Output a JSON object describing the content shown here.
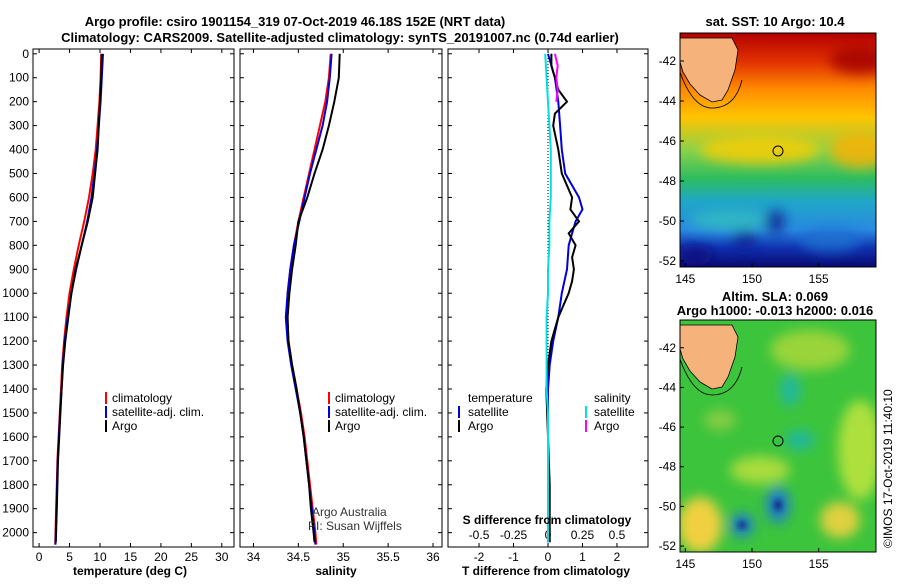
{
  "header": {
    "title_line1": "Argo profile: csiro 1901154_319 07-Oct-2019 46.18S 152E (NRT data)",
    "title_line2": "Climatology: CARS2009. Satellite-adjusted climatology: synTS_20191007.nc (0.74d earlier)"
  },
  "colors": {
    "climatology": "#ff0000",
    "satellite": "#0000dd",
    "argo": "#000000",
    "sat_salinity": "#00e0e0",
    "argo_salinity": "#ff00ff"
  },
  "depth_ticks": [
    "0",
    "100",
    "200",
    "300",
    "400",
    "500",
    "600",
    "700",
    "800",
    "900",
    "1000",
    "1100",
    "1200",
    "1300",
    "1400",
    "1500",
    "1600",
    "1700",
    "1800",
    "1900",
    "2000"
  ],
  "legend_tp": {
    "items": [
      "climatology",
      "satellite-adj. clim.",
      "Argo"
    ]
  },
  "legend_diff": {
    "temperature_header": "temperature",
    "salinity_header": "salinity",
    "t_items": [
      "satellite",
      "Argo"
    ],
    "s_items": [
      "satellite",
      "Argo"
    ]
  },
  "credits": {
    "line1": "Argo Australia",
    "line2": "PI: Susan Wijffels"
  },
  "chart_data": [
    {
      "type": "line",
      "id": "temperature",
      "xlabel": "temperature (deg C)",
      "ylabel": "depth",
      "xlim": [
        -1,
        32
      ],
      "ylim": [
        2060,
        -20
      ],
      "xticks": [
        "0",
        "5",
        "10",
        "15",
        "20",
        "25",
        "30"
      ],
      "series": [
        {
          "name": "climatology",
          "depth": [
            0,
            100,
            200,
            300,
            400,
            500,
            600,
            700,
            800,
            900,
            1000,
            1100,
            1200,
            1300,
            1400,
            1500,
            1600,
            1700,
            1800,
            1900,
            2000,
            2050
          ],
          "values": [
            10.2,
            10.1,
            9.9,
            9.6,
            9.3,
            8.8,
            8.2,
            7.4,
            6.5,
            5.7,
            5.0,
            4.5,
            4.1,
            3.8,
            3.6,
            3.4,
            3.2,
            3.0,
            2.9,
            2.8,
            2.7,
            2.65
          ]
        },
        {
          "name": "satellite-adj. clim.",
          "depth": [
            0,
            100,
            200,
            300,
            400,
            500,
            600,
            700,
            800,
            900,
            1000,
            1100,
            1200,
            1300,
            1400,
            1500,
            1600,
            1700,
            1800,
            1900,
            2000,
            2050
          ],
          "values": [
            10.5,
            10.3,
            10.1,
            9.8,
            9.5,
            9.1,
            8.6,
            7.9,
            7.0,
            6.1,
            5.3,
            4.7,
            4.2,
            3.9,
            3.7,
            3.45,
            3.25,
            3.05,
            2.95,
            2.85,
            2.75,
            2.7
          ]
        },
        {
          "name": "Argo",
          "depth": [
            0,
            100,
            200,
            300,
            400,
            500,
            600,
            700,
            800,
            900,
            1000,
            1100,
            1200,
            1300,
            1400,
            1500,
            1600,
            1700,
            1800,
            1900,
            2000,
            2040
          ],
          "values": [
            10.3,
            10.2,
            10.0,
            9.8,
            9.6,
            9.2,
            8.8,
            8.0,
            7.0,
            6.0,
            5.3,
            4.8,
            4.3,
            3.95,
            3.7,
            3.5,
            3.3,
            3.1,
            3.0,
            2.9,
            2.8,
            2.75
          ]
        }
      ]
    },
    {
      "type": "line",
      "id": "salinity",
      "xlabel": "salinity",
      "ylabel": "depth",
      "xlim": [
        33.85,
        36.1
      ],
      "ylim": [
        2060,
        -20
      ],
      "xticks": [
        "34",
        "34.5",
        "35",
        "35.5",
        "36"
      ],
      "series": [
        {
          "name": "climatology",
          "depth": [
            0,
            100,
            200,
            300,
            400,
            500,
            600,
            700,
            800,
            900,
            1000,
            1100,
            1200,
            1300,
            1400,
            1500,
            1600,
            1700,
            1800,
            1900,
            2000,
            2050
          ],
          "values": [
            34.86,
            34.84,
            34.8,
            34.74,
            34.68,
            34.62,
            34.56,
            34.5,
            34.45,
            34.41,
            34.38,
            34.37,
            34.39,
            34.43,
            34.48,
            34.53,
            34.57,
            34.6,
            34.63,
            34.66,
            34.69,
            34.7
          ]
        },
        {
          "name": "satellite-adj. clim.",
          "depth": [
            0,
            100,
            200,
            300,
            400,
            500,
            600,
            700,
            800,
            900,
            1000,
            1100,
            1200,
            1300,
            1400,
            1500,
            1600,
            1700,
            1800,
            1900,
            2000,
            2050
          ],
          "values": [
            34.87,
            34.85,
            34.82,
            34.77,
            34.7,
            34.63,
            34.57,
            34.51,
            34.45,
            34.41,
            34.38,
            34.36,
            34.38,
            34.42,
            34.47,
            34.52,
            34.56,
            34.59,
            34.62,
            34.65,
            34.68,
            34.69
          ]
        },
        {
          "name": "Argo",
          "depth": [
            0,
            100,
            200,
            300,
            400,
            500,
            600,
            700,
            800,
            900,
            1000,
            1100,
            1200,
            1300,
            1400,
            1500,
            1600,
            1700,
            1800,
            1900,
            2000,
            2040
          ],
          "values": [
            34.96,
            34.95,
            34.9,
            34.84,
            34.77,
            34.68,
            34.6,
            34.5,
            34.47,
            34.43,
            34.4,
            34.38,
            34.39,
            34.43,
            34.48,
            34.52,
            34.56,
            34.59,
            34.62,
            34.64,
            34.67,
            34.68
          ]
        }
      ]
    },
    {
      "type": "line",
      "id": "difference",
      "xlabel": "T difference from climatology",
      "xlabel_top": "S difference from climatology",
      "xlim": [
        -2.9,
        2.9
      ],
      "ylim": [
        2060,
        -20
      ],
      "xticks": [
        "-2",
        "-1",
        "0",
        "1",
        "2"
      ],
      "xticks_top": [
        "-0.5",
        "-0.25",
        "0",
        "0.25",
        "0.5"
      ],
      "series": [
        {
          "name": "temperature satellite",
          "depth": [
            0,
            100,
            200,
            300,
            400,
            500,
            600,
            650,
            700,
            750,
            800,
            900,
            1000,
            1100,
            1200,
            1300,
            1400,
            1500,
            1700,
            1900,
            2040
          ],
          "values": [
            0.0,
            0.2,
            0.3,
            0.35,
            0.4,
            0.5,
            0.9,
            1.0,
            0.8,
            0.7,
            0.6,
            0.55,
            0.4,
            0.3,
            0.15,
            0.05,
            0.0,
            0.0,
            0.0,
            0.0,
            0.0
          ]
        },
        {
          "name": "temperature Argo",
          "depth": [
            0,
            50,
            100,
            150,
            200,
            250,
            300,
            400,
            500,
            600,
            650,
            700,
            750,
            800,
            850,
            900,
            950,
            1000,
            1100,
            1200,
            1300,
            1400,
            1600,
            1800,
            2040
          ],
          "values": [
            0.1,
            0.1,
            0.2,
            0.3,
            0.55,
            0.2,
            0.15,
            0.3,
            0.4,
            0.7,
            0.65,
            0.9,
            0.6,
            0.8,
            0.7,
            0.75,
            0.7,
            0.6,
            0.3,
            0.1,
            0.0,
            -0.05,
            0.0,
            0.05,
            0.05
          ]
        },
        {
          "name": "salinity satellite",
          "depth": [
            0,
            100,
            200,
            300,
            400,
            500,
            600,
            700,
            800,
            900,
            1000,
            1100,
            1200,
            1300,
            1400,
            1500,
            1700,
            1900,
            2040
          ],
          "values": [
            -0.02,
            -0.01,
            0.0,
            0.01,
            0.02,
            0.02,
            0.02,
            0.01,
            0.01,
            0.0,
            0.0,
            -0.01,
            -0.01,
            -0.01,
            -0.01,
            0.0,
            0.0,
            0.0,
            0.0
          ]
        },
        {
          "name": "salinity Argo",
          "depth": [
            0,
            50,
            100,
            150,
            200
          ],
          "values": [
            0.05,
            0.07,
            0.06,
            0.07,
            0.06
          ]
        }
      ]
    }
  ],
  "maps": {
    "sst": {
      "title": "sat. SST: 10 Argo: 10.4",
      "lat_ticks": [
        "-42",
        "-44",
        "-46",
        "-48",
        "-50",
        "-52"
      ],
      "lon_ticks": [
        "145",
        "150",
        "155"
      ]
    },
    "sla": {
      "title_line1": "Altim. SLA: 0.069",
      "title_line2": "Argo h1000: -0.013 h2000: 0.016",
      "lat_ticks": [
        "-42",
        "-44",
        "-46",
        "-48",
        "-50",
        "-52"
      ],
      "lon_ticks": [
        "145",
        "150",
        "155"
      ]
    }
  },
  "footer": {
    "stamp": "©IMOS 17-Oct-2019 11:40:10"
  }
}
